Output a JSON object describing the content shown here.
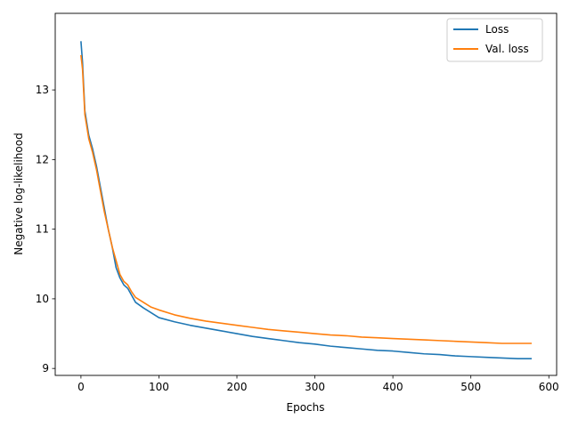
{
  "chart_data": {
    "type": "line",
    "title": "",
    "xlabel": "Epochs",
    "ylabel": "Negative log-likelihood",
    "xlim": [
      -33,
      610
    ],
    "ylim": [
      8.9,
      14.1
    ],
    "x_ticks": [
      0,
      100,
      200,
      300,
      400,
      500,
      600
    ],
    "y_ticks": [
      9,
      10,
      11,
      12,
      13
    ],
    "grid": false,
    "legend": "upper right",
    "series": [
      {
        "name": "Loss",
        "color": "#1f77b4",
        "points": [
          [
            0,
            13.7
          ],
          [
            2,
            13.4
          ],
          [
            5,
            12.7
          ],
          [
            10,
            12.35
          ],
          [
            15,
            12.15
          ],
          [
            20,
            11.9
          ],
          [
            25,
            11.6
          ],
          [
            30,
            11.3
          ],
          [
            35,
            11.0
          ],
          [
            40,
            10.75
          ],
          [
            45,
            10.45
          ],
          [
            50,
            10.3
          ],
          [
            55,
            10.2
          ],
          [
            60,
            10.15
          ],
          [
            65,
            10.05
          ],
          [
            70,
            9.95
          ],
          [
            80,
            9.87
          ],
          [
            90,
            9.8
          ],
          [
            100,
            9.73
          ],
          [
            120,
            9.67
          ],
          [
            140,
            9.62
          ],
          [
            160,
            9.58
          ],
          [
            180,
            9.54
          ],
          [
            200,
            9.5
          ],
          [
            220,
            9.46
          ],
          [
            240,
            9.43
          ],
          [
            260,
            9.4
          ],
          [
            280,
            9.37
          ],
          [
            300,
            9.35
          ],
          [
            320,
            9.32
          ],
          [
            340,
            9.3
          ],
          [
            360,
            9.28
          ],
          [
            380,
            9.26
          ],
          [
            400,
            9.25
          ],
          [
            420,
            9.23
          ],
          [
            440,
            9.21
          ],
          [
            460,
            9.2
          ],
          [
            480,
            9.18
          ],
          [
            500,
            9.17
          ],
          [
            520,
            9.16
          ],
          [
            540,
            9.15
          ],
          [
            560,
            9.14
          ],
          [
            578,
            9.14
          ]
        ]
      },
      {
        "name": "Val. loss",
        "color": "#ff7f0e",
        "points": [
          [
            0,
            13.5
          ],
          [
            2,
            13.3
          ],
          [
            5,
            12.65
          ],
          [
            10,
            12.3
          ],
          [
            15,
            12.1
          ],
          [
            20,
            11.85
          ],
          [
            25,
            11.55
          ],
          [
            30,
            11.25
          ],
          [
            35,
            11.0
          ],
          [
            40,
            10.75
          ],
          [
            45,
            10.55
          ],
          [
            50,
            10.35
          ],
          [
            55,
            10.25
          ],
          [
            60,
            10.2
          ],
          [
            65,
            10.1
          ],
          [
            70,
            10.02
          ],
          [
            80,
            9.95
          ],
          [
            90,
            9.88
          ],
          [
            100,
            9.84
          ],
          [
            120,
            9.77
          ],
          [
            140,
            9.72
          ],
          [
            160,
            9.68
          ],
          [
            180,
            9.65
          ],
          [
            200,
            9.62
          ],
          [
            220,
            9.59
          ],
          [
            240,
            9.56
          ],
          [
            260,
            9.54
          ],
          [
            280,
            9.52
          ],
          [
            300,
            9.5
          ],
          [
            320,
            9.48
          ],
          [
            340,
            9.47
          ],
          [
            360,
            9.45
          ],
          [
            380,
            9.44
          ],
          [
            400,
            9.43
          ],
          [
            420,
            9.42
          ],
          [
            440,
            9.41
          ],
          [
            460,
            9.4
          ],
          [
            480,
            9.39
          ],
          [
            500,
            9.38
          ],
          [
            520,
            9.37
          ],
          [
            540,
            9.36
          ],
          [
            560,
            9.36
          ],
          [
            578,
            9.36
          ]
        ]
      }
    ]
  }
}
